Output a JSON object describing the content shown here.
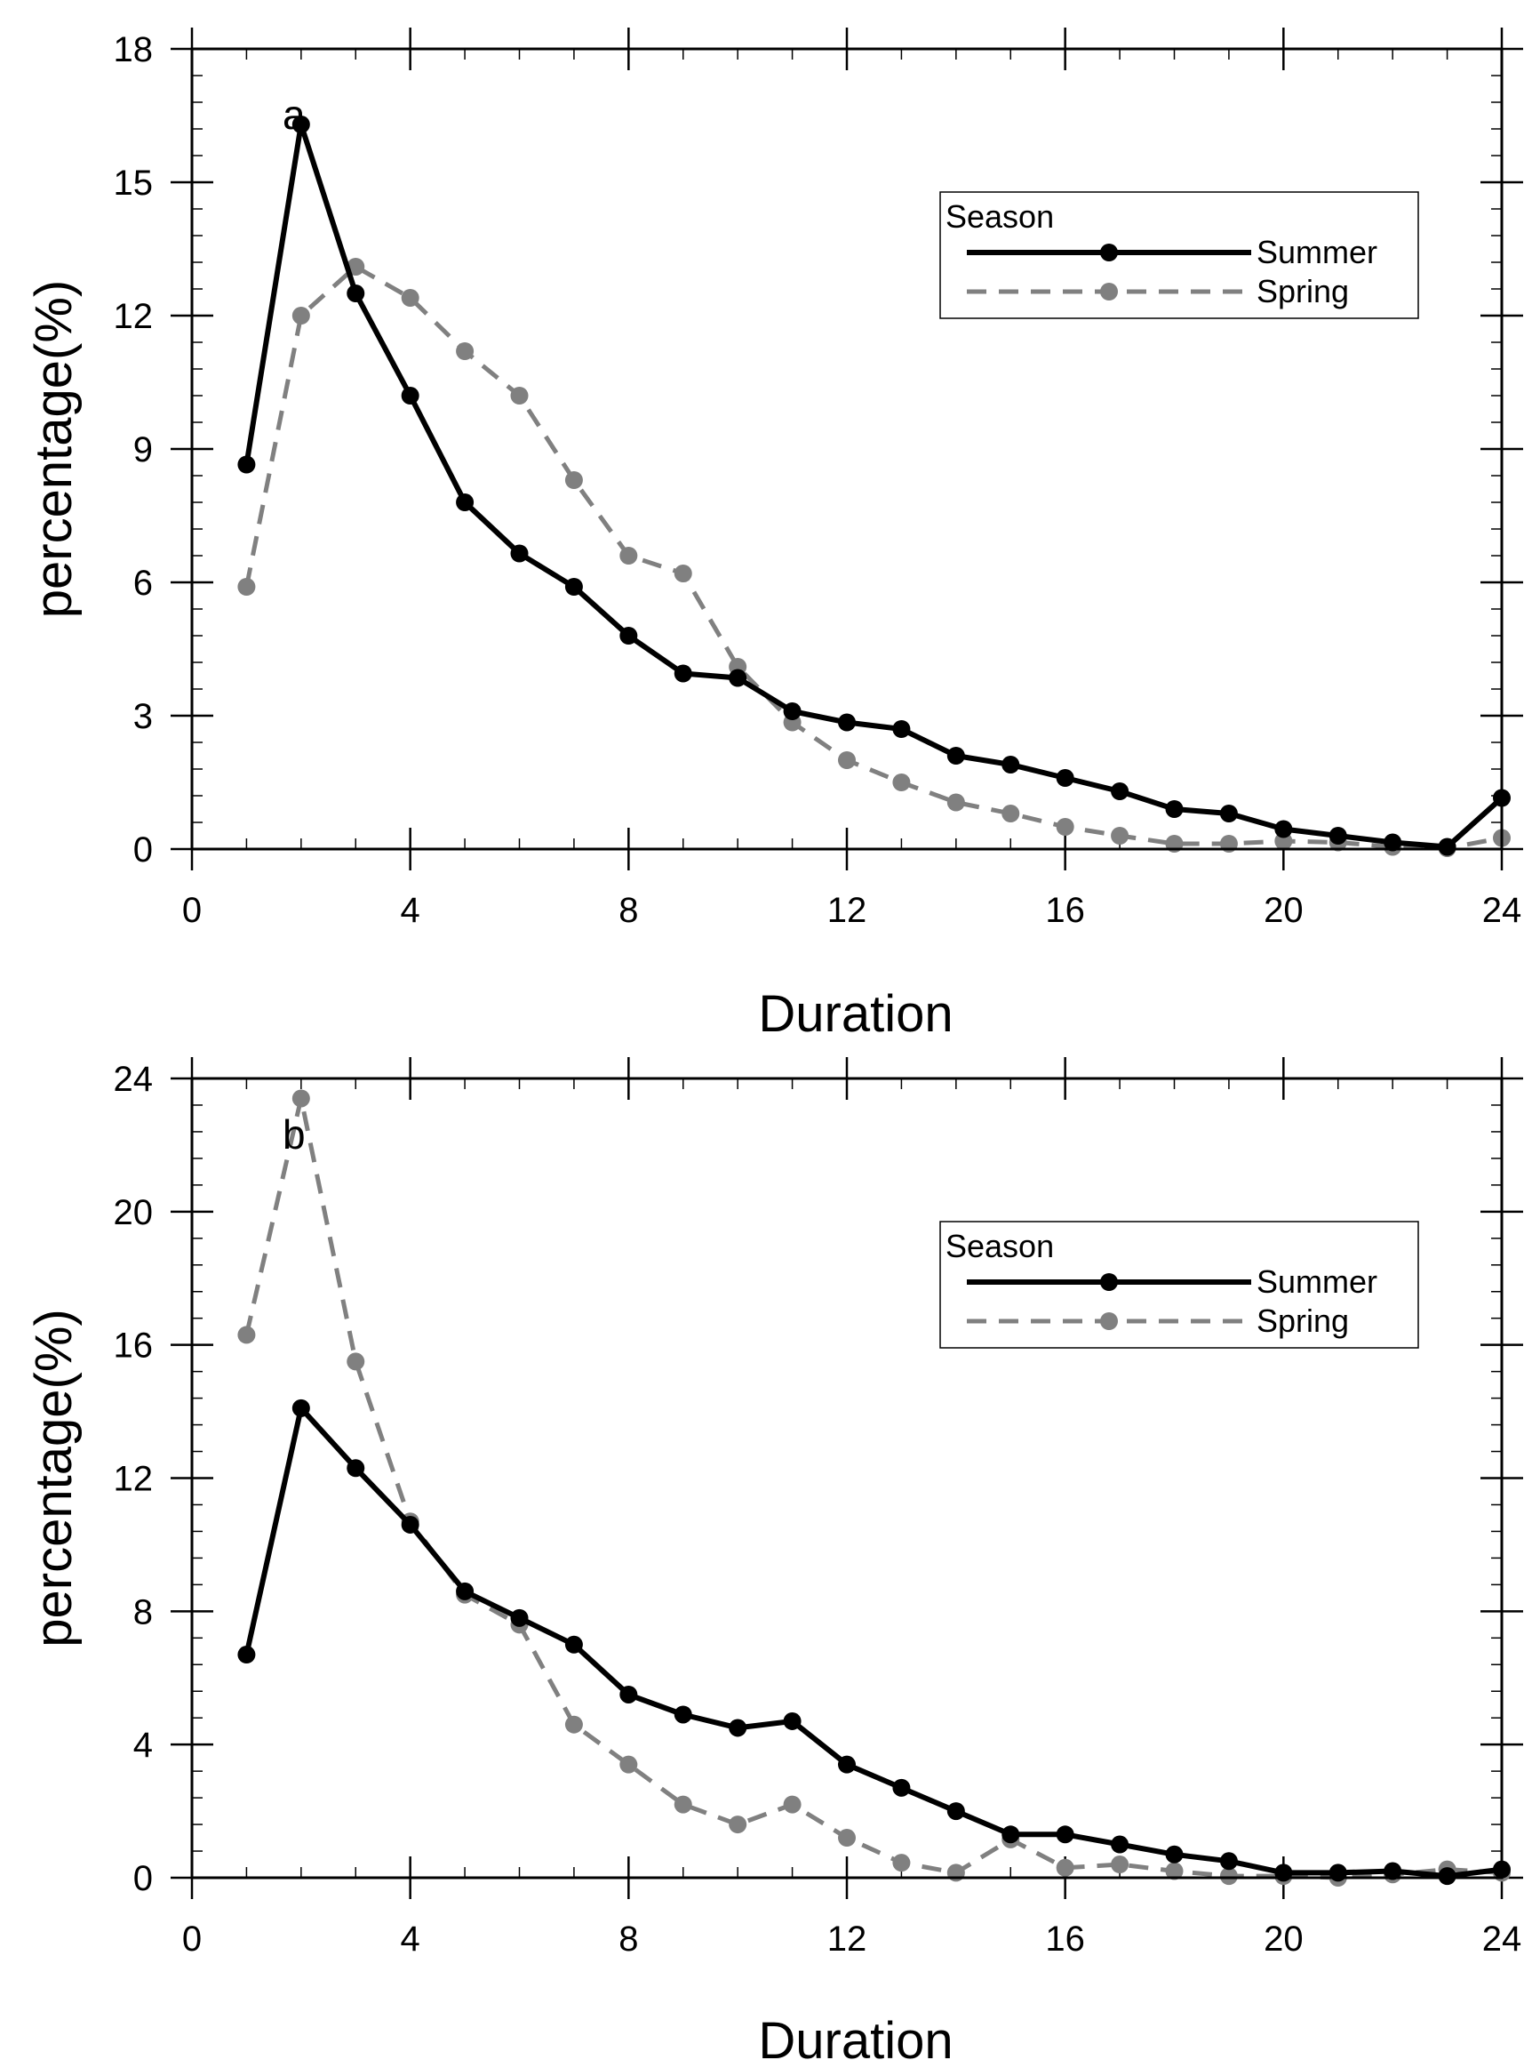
{
  "chart_data": [
    {
      "type": "line",
      "panel_label": "a",
      "xlabel": "Duration",
      "ylabel": "percentage(%)",
      "xlim": [
        0,
        24
      ],
      "ylim": [
        0,
        18
      ],
      "xticks": [
        0,
        4,
        8,
        12,
        16,
        20,
        24
      ],
      "yticks": [
        0,
        3,
        6,
        9,
        12,
        15,
        18
      ],
      "legend": {
        "title": "Season",
        "position": "top-right"
      },
      "x": [
        1,
        2,
        3,
        4,
        5,
        6,
        7,
        8,
        9,
        10,
        11,
        12,
        13,
        14,
        15,
        16,
        17,
        18,
        19,
        20,
        21,
        22,
        23,
        24
      ],
      "series": [
        {
          "name": "Summer",
          "color": "#000000",
          "style": "solid",
          "values": [
            8.65,
            16.3,
            12.5,
            10.2,
            7.8,
            6.65,
            5.9,
            4.8,
            3.95,
            3.85,
            3.1,
            2.85,
            2.7,
            2.1,
            1.9,
            1.6,
            1.3,
            0.9,
            0.8,
            0.45,
            0.3,
            0.15,
            0.05,
            1.15
          ]
        },
        {
          "name": "Spring",
          "color": "#808080",
          "style": "dashed",
          "values": [
            5.9,
            12.0,
            13.1,
            12.4,
            11.2,
            10.2,
            8.3,
            6.6,
            6.2,
            4.1,
            2.85,
            2.0,
            1.5,
            1.05,
            0.8,
            0.5,
            0.3,
            0.12,
            0.12,
            0.18,
            0.15,
            0.05,
            0.02,
            0.25
          ]
        }
      ]
    },
    {
      "type": "line",
      "panel_label": "b",
      "xlabel": "Duration",
      "ylabel": "percentage(%)",
      "xlim": [
        0,
        24
      ],
      "ylim": [
        0,
        24
      ],
      "xticks": [
        0,
        4,
        8,
        12,
        16,
        20,
        24
      ],
      "yticks": [
        0,
        4,
        8,
        12,
        16,
        20,
        24
      ],
      "legend": {
        "title": "Season",
        "position": "top-right"
      },
      "x": [
        1,
        2,
        3,
        4,
        5,
        6,
        7,
        8,
        9,
        10,
        11,
        12,
        13,
        14,
        15,
        16,
        17,
        18,
        19,
        20,
        21,
        22,
        23,
        24
      ],
      "series": [
        {
          "name": "Summer",
          "color": "#000000",
          "style": "solid",
          "values": [
            6.7,
            14.1,
            12.3,
            10.6,
            8.6,
            7.8,
            7.0,
            5.5,
            4.9,
            4.5,
            4.7,
            3.4,
            2.7,
            2.0,
            1.3,
            1.3,
            1.0,
            0.7,
            0.5,
            0.15,
            0.15,
            0.2,
            0.05,
            0.25
          ]
        },
        {
          "name": "Spring",
          "color": "#808080",
          "style": "dashed",
          "values": [
            16.3,
            23.4,
            15.5,
            10.7,
            8.5,
            7.6,
            4.6,
            3.4,
            2.2,
            1.6,
            2.2,
            1.2,
            0.45,
            0.15,
            1.15,
            0.3,
            0.4,
            0.2,
            0.05,
            0.05,
            0.0,
            0.1,
            0.25,
            0.15
          ]
        }
      ]
    }
  ]
}
